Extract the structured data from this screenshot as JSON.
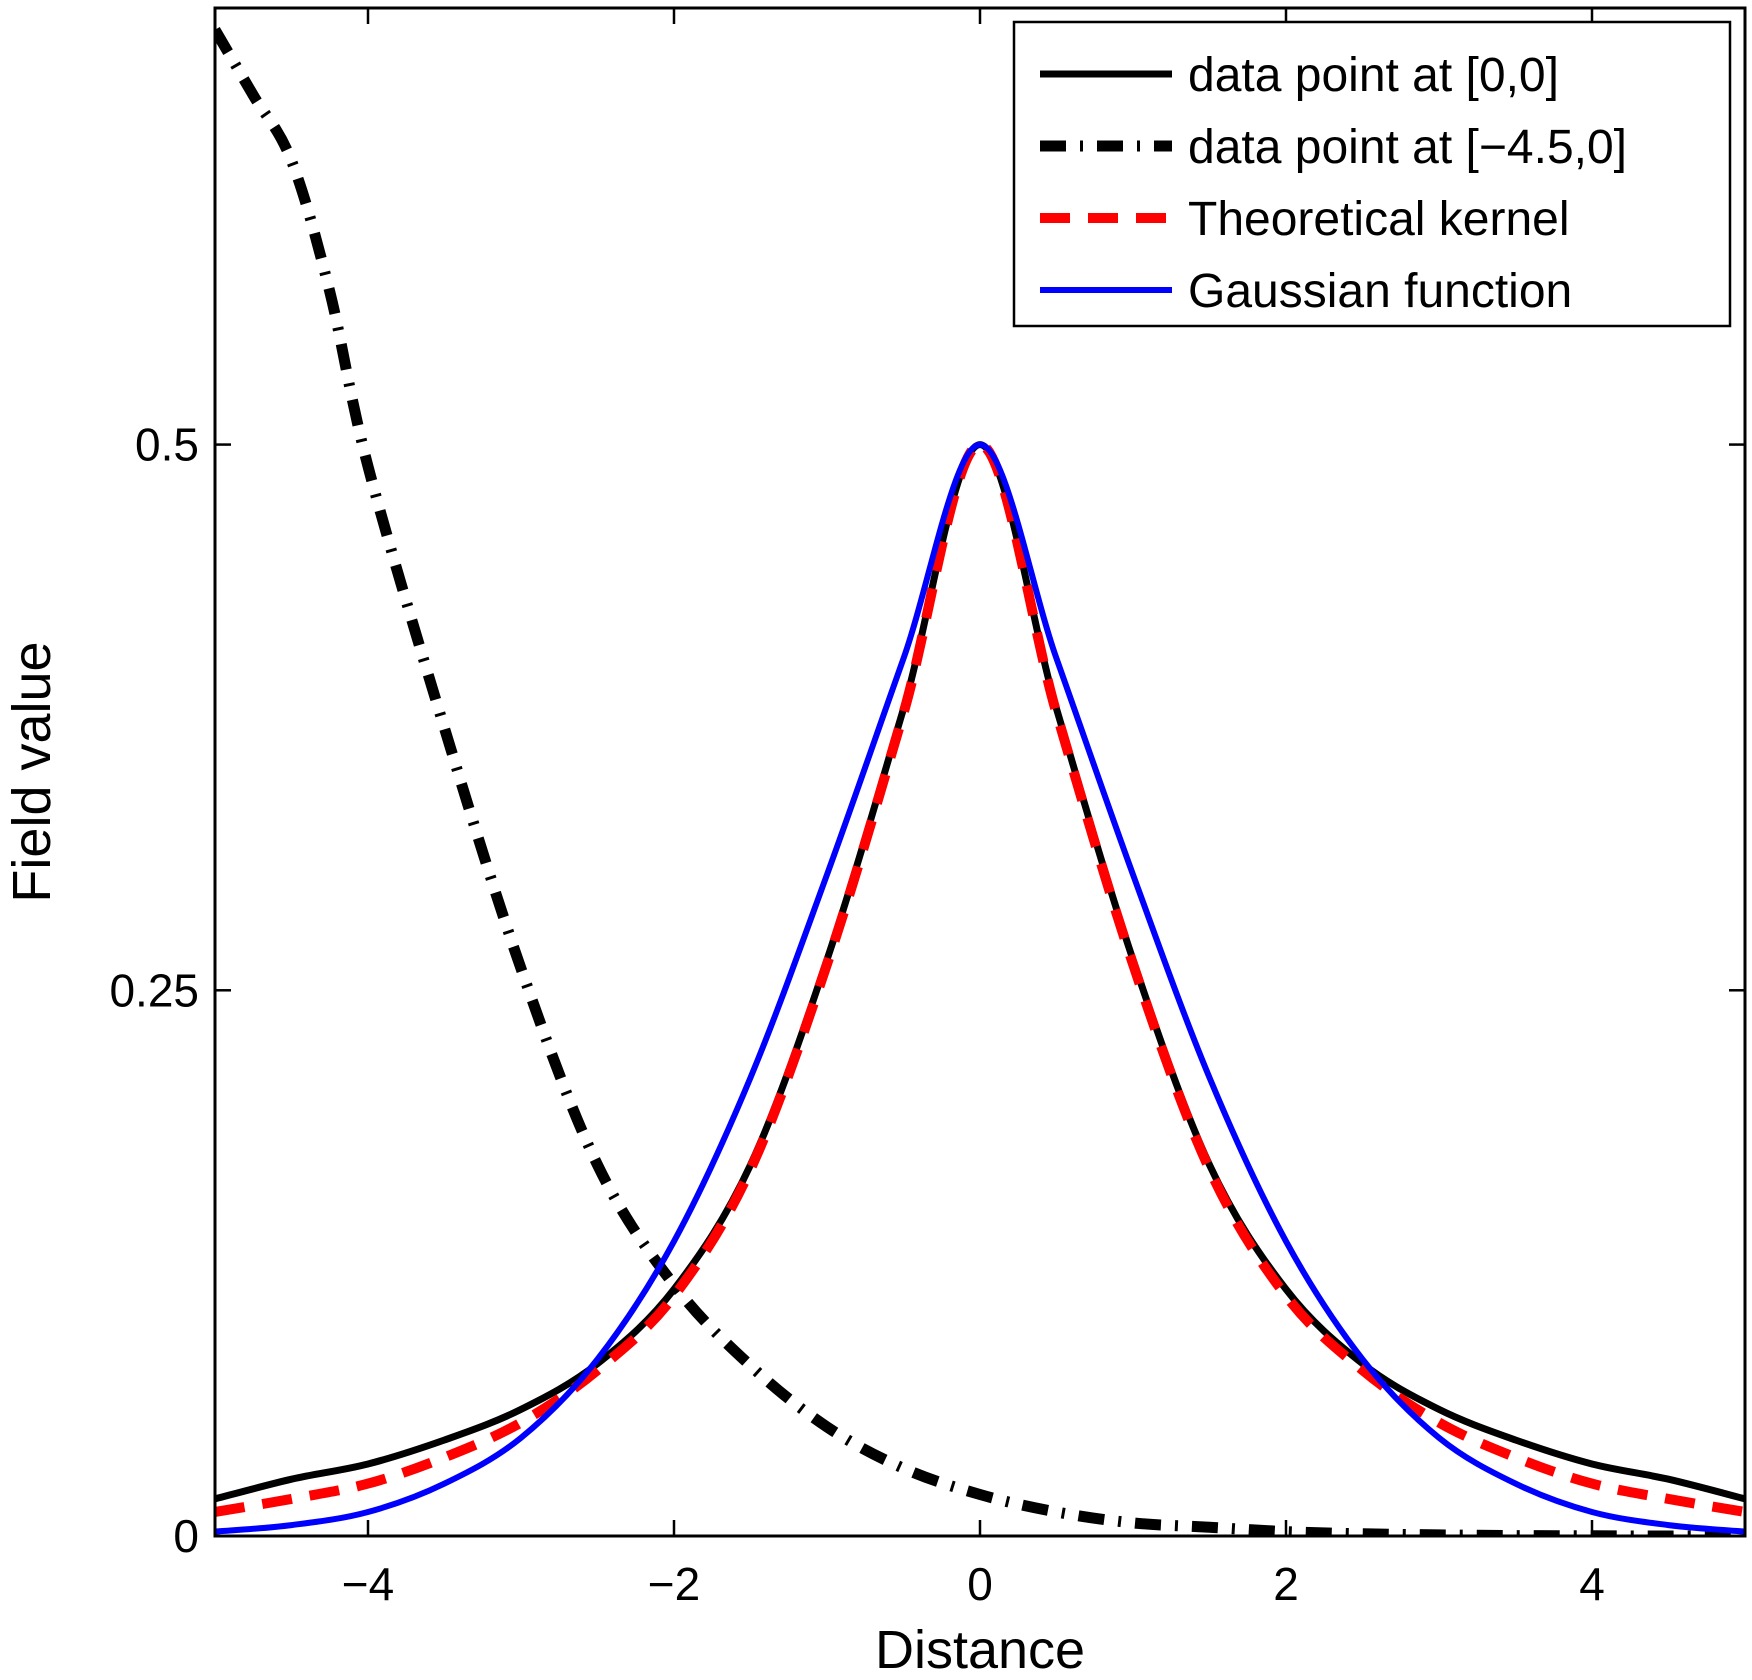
{
  "chart_data": {
    "type": "line",
    "title": "",
    "xlabel": "Distance",
    "ylabel": "Field value",
    "xlim": [
      -5,
      5
    ],
    "ylim": [
      0,
      0.7
    ],
    "xticks": [
      -4,
      -2,
      0,
      2,
      4
    ],
    "xtick_labels": [
      "−4",
      "−2",
      "0",
      "2",
      "4"
    ],
    "yticks": [
      0,
      0.25,
      0.5
    ],
    "ytick_labels": [
      "0",
      "0.25",
      "0.5"
    ],
    "grid": false,
    "legend_position": "top-right",
    "series": [
      {
        "name": "data point at [0,0]",
        "color": "#000000",
        "line_style": "solid",
        "x": [
          -5,
          -4.5,
          -4,
          -3.5,
          -3,
          -2.5,
          -2,
          -1.5,
          -1,
          -0.5,
          0,
          0.5,
          1,
          1.5,
          2,
          2.5,
          3,
          3.5,
          4,
          4.5,
          5
        ],
        "y": [
          0.017,
          0.026,
          0.033,
          0.044,
          0.058,
          0.079,
          0.113,
          0.17,
          0.264,
          0.379,
          0.5,
          0.379,
          0.264,
          0.17,
          0.113,
          0.079,
          0.058,
          0.044,
          0.033,
          0.026,
          0.017
        ]
      },
      {
        "name": "data point at [−4.5,0]",
        "color": "#000000",
        "line_style": "dashdot",
        "x": [
          -5,
          -4.75,
          -4.5,
          -4.25,
          -4,
          -3.5,
          -3,
          -2.5,
          -2,
          -1.5,
          -1,
          -0.5,
          0,
          0.5,
          1,
          1.5,
          2,
          2.5,
          3,
          3.5,
          4,
          4.5,
          5
        ],
        "y": [
          0.69,
          0.66,
          0.63,
          0.57,
          0.49,
          0.37,
          0.26,
          0.17,
          0.115,
          0.078,
          0.05,
          0.031,
          0.019,
          0.011,
          0.006,
          0.004,
          0.002,
          0.001,
          0.0005,
          0.0002,
          0.0001,
          0,
          0
        ]
      },
      {
        "name": "Theoretical kernel",
        "color": "#ff0000",
        "line_style": "dashed",
        "x": [
          -5,
          -4.5,
          -4,
          -3.5,
          -3,
          -2.5,
          -2,
          -1.5,
          -1,
          -0.5,
          0,
          0.5,
          1,
          1.5,
          2,
          2.5,
          3,
          3.5,
          4,
          4.5,
          5
        ],
        "y": [
          0.011,
          0.017,
          0.024,
          0.036,
          0.052,
          0.076,
          0.11,
          0.168,
          0.262,
          0.377,
          0.5,
          0.377,
          0.262,
          0.168,
          0.11,
          0.076,
          0.052,
          0.036,
          0.024,
          0.017,
          0.011
        ]
      },
      {
        "name": "Gaussian function",
        "color": "#0000ff",
        "line_style": "solid",
        "x": [
          -5,
          -4.5,
          -4,
          -3.5,
          -3,
          -2.5,
          -2,
          -1.5,
          -1,
          -0.5,
          0,
          0.5,
          1,
          1.5,
          2,
          2.5,
          3,
          3.5,
          4,
          4.5,
          5
        ],
        "y": [
          0.002,
          0.005,
          0.011,
          0.024,
          0.045,
          0.081,
          0.135,
          0.21,
          0.303,
          0.402,
          0.5,
          0.402,
          0.303,
          0.21,
          0.135,
          0.081,
          0.045,
          0.024,
          0.011,
          0.005,
          0.002
        ]
      }
    ]
  }
}
